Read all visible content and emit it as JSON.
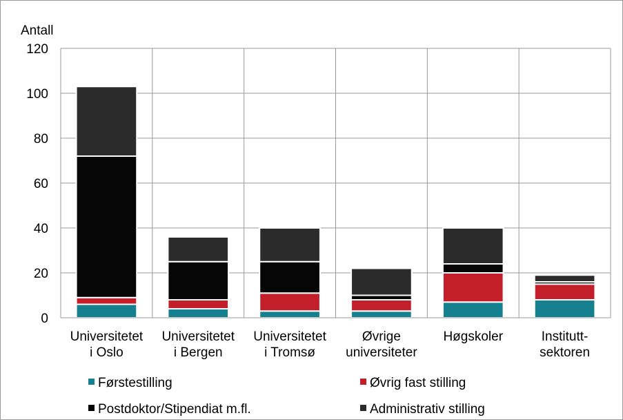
{
  "chart_data": {
    "type": "stacked_bar",
    "y_label": "Antall",
    "categories": [
      "Universitetet\ni Oslo",
      "Universitetet\ni Bergen",
      "Universitetet\ni Tromsø",
      "Øvrige\nuniversiteter",
      "Høgskoler",
      "Institutt-\nsektoren"
    ],
    "series": [
      {
        "name": "Førstestilling",
        "color": "#17808f",
        "values": [
          6,
          4,
          3,
          3,
          7,
          8
        ]
      },
      {
        "name": "Øvrig fast stilling",
        "color": "#c21f2b",
        "values": [
          3,
          4,
          8,
          5,
          13,
          7
        ]
      },
      {
        "name": "Postdoktor/Stipendiat m.fl.",
        "color": "#060606",
        "values": [
          63,
          17,
          14,
          2,
          4,
          1
        ]
      },
      {
        "name": "Administrativ stilling",
        "color": "#2b2b2b",
        "values": [
          31,
          11,
          15,
          12,
          16,
          3
        ]
      }
    ],
    "ylim": [
      0,
      120
    ],
    "yticks": [
      0,
      20,
      40,
      60,
      80,
      100,
      120
    ],
    "grid": true
  }
}
